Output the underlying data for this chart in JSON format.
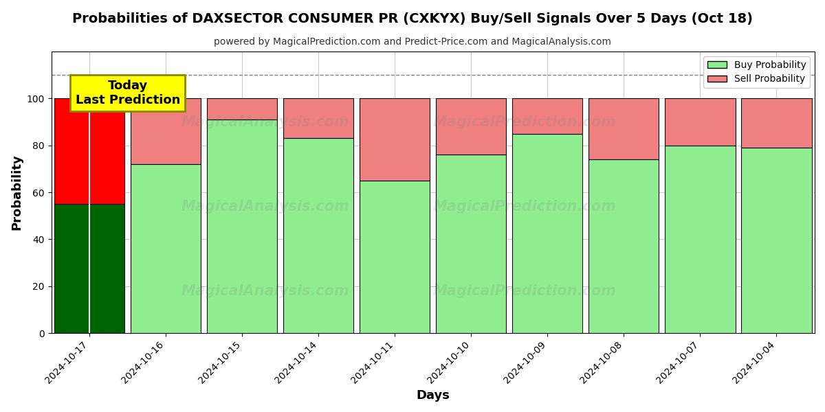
{
  "title": "Probabilities of DAXSECTOR CONSUMER PR (CXKYX) Buy/Sell Signals Over 5 Days (Oct 18)",
  "subtitle": "powered by MagicalPrediction.com and Predict-Price.com and MagicalAnalysis.com",
  "xlabel": "Days",
  "ylabel": "Probability",
  "dates": [
    "2024-10-17",
    "2024-10-16",
    "2024-10-15",
    "2024-10-14",
    "2024-10-11",
    "2024-10-10",
    "2024-10-09",
    "2024-10-08",
    "2024-10-07",
    "2024-10-04"
  ],
  "buy_values": [
    55,
    72,
    91,
    83,
    65,
    76,
    85,
    74,
    80,
    79
  ],
  "sell_values": [
    45,
    28,
    9,
    17,
    35,
    24,
    15,
    26,
    20,
    21
  ],
  "today_buy_color": "#006400",
  "today_sell_color": "#FF0000",
  "buy_color": "#90EE90",
  "sell_color": "#F08080",
  "bar_edge_color": "#000000",
  "ylim": [
    0,
    120
  ],
  "yticks": [
    0,
    20,
    40,
    60,
    80,
    100
  ],
  "dashed_line_y": 110,
  "annotation_text": "Today\nLast Prediction",
  "annotation_bg": "#FFFF00",
  "watermark1": "MagicalAnalysis.com",
  "watermark2": "MagicalPrediction.com",
  "legend_buy_label": "Buy Probability",
  "legend_sell_label": "Sell Probability",
  "figsize": [
    12,
    6
  ],
  "dpi": 100
}
